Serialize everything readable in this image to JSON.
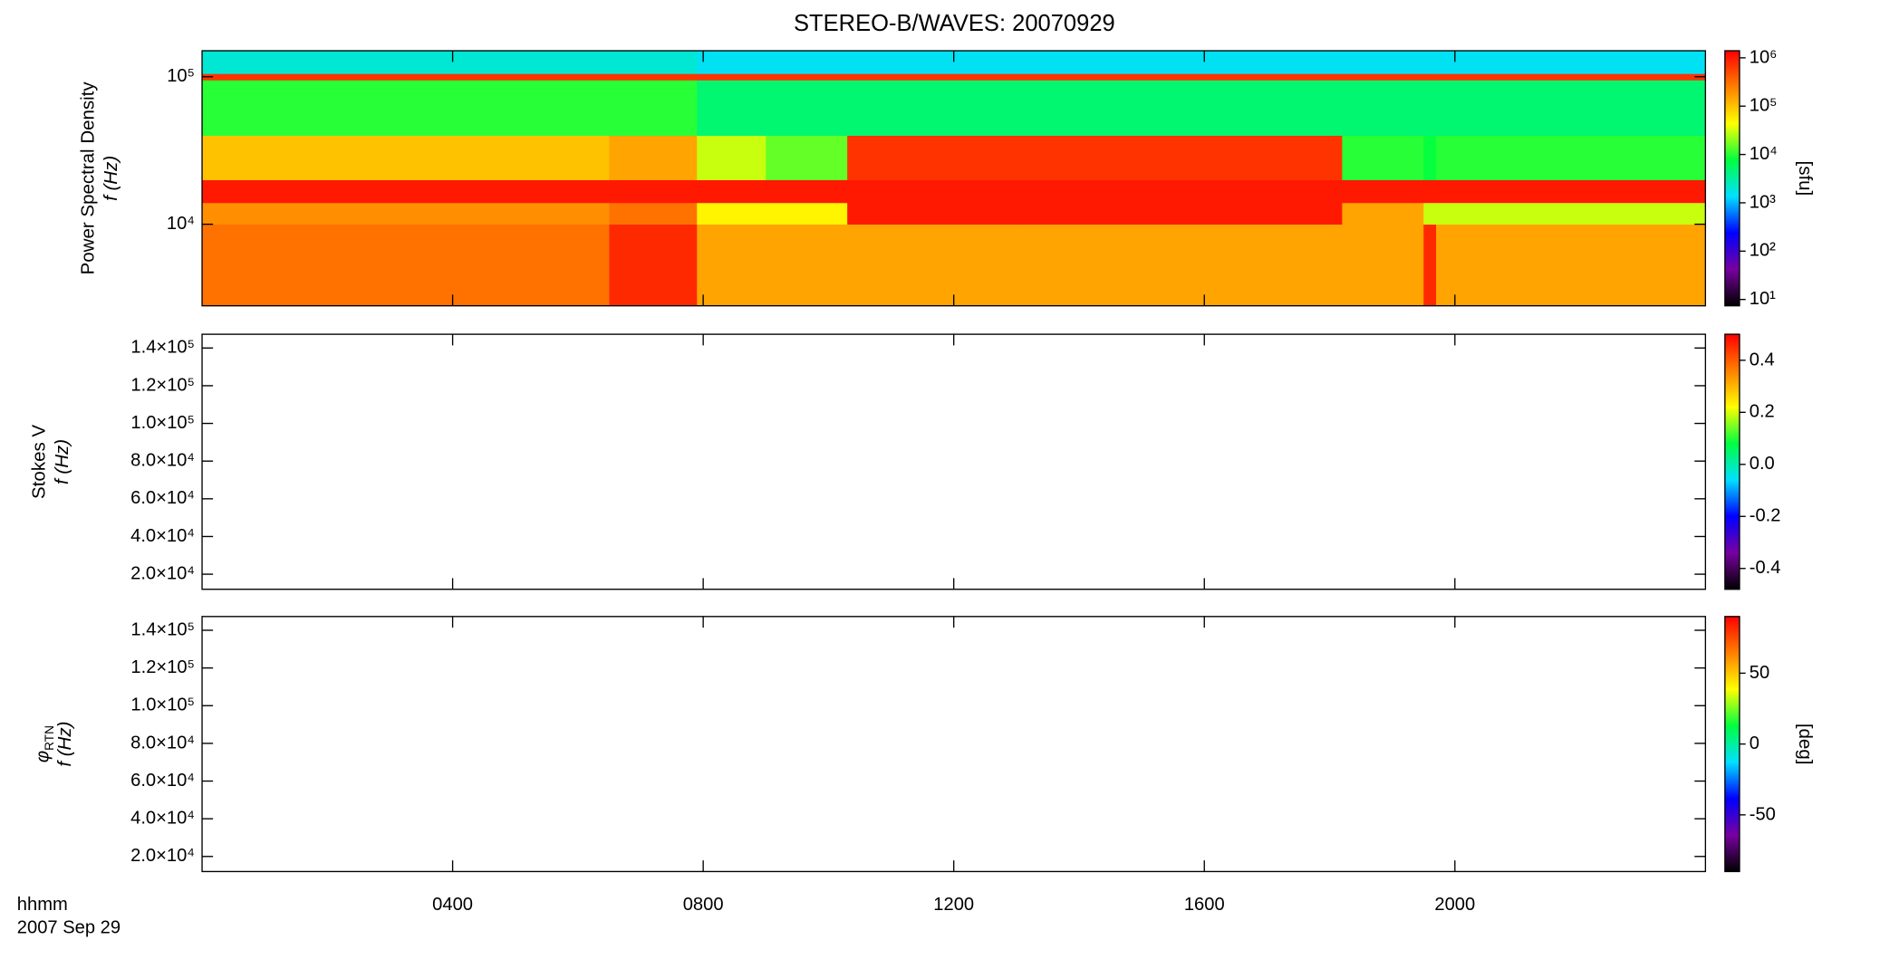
{
  "chart_data": [
    {
      "type": "heatmap",
      "title": "STEREO-B/WAVES: 20070929",
      "ylabel": "Power Spectral Density",
      "ylabel2": "f (Hz)",
      "x": [
        0,
        6.5,
        7.9,
        9,
        10.3,
        13.1,
        16.3,
        18.2,
        19.5,
        19.7,
        24
      ],
      "y": [
        2800,
        10000,
        14000,
        20000,
        40000,
        95000,
        105000,
        150000
      ],
      "z": [
        [
          300000,
          800000,
          150000,
          150000,
          150000,
          150000,
          150000,
          150000,
          800000,
          150000
        ],
        [
          200000,
          300000,
          50000,
          50000,
          1000000,
          1000000,
          1000000,
          150000,
          30000,
          30000
        ],
        [
          1000000,
          1000000,
          1000000,
          1000000,
          1000000,
          1000000,
          1000000,
          1000000,
          1000000,
          1000000
        ],
        [
          100000,
          150000,
          30000,
          15000,
          700000,
          700000,
          700000,
          10000,
          8000,
          10000
        ],
        [
          10000,
          10000,
          5000,
          5000,
          5000,
          5000,
          5000,
          5000,
          5000,
          5000
        ],
        [
          700000,
          700000,
          700000,
          700000,
          700000,
          700000,
          700000,
          700000,
          700000,
          700000
        ],
        [
          2000,
          2000,
          1500,
          1500,
          1500,
          1500,
          1500,
          1500,
          1500,
          1500
        ]
      ],
      "xlim": [
        0,
        24
      ],
      "xticks": [
        {
          "value": 4,
          "label": "0400"
        },
        {
          "value": 8,
          "label": "0800"
        },
        {
          "value": 12,
          "label": "1200"
        },
        {
          "value": 16,
          "label": "1600"
        },
        {
          "value": 20,
          "label": "2000"
        }
      ],
      "xtick_labels": false,
      "ylim": [
        2800,
        150000
      ],
      "yscale": "log",
      "yticks": [
        {
          "value": 10000,
          "label": "10⁴"
        },
        {
          "value": 100000,
          "label": "10⁵"
        }
      ],
      "zlim": [
        7.4,
        1400000
      ],
      "zscale": "log",
      "zticks": [
        {
          "value": 10,
          "label": "10¹"
        },
        {
          "value": 100,
          "label": "10²"
        },
        {
          "value": 1000,
          "label": "10³"
        },
        {
          "value": 10000,
          "label": "10⁴"
        },
        {
          "value": 100000,
          "label": "10⁵"
        },
        {
          "value": 1000000,
          "label": "10⁶"
        }
      ],
      "zlabel": "[sfu]",
      "colormap": [
        "#000000",
        "#7800a0",
        "#0000ff",
        "#00e0ff",
        "#00ff40",
        "#ffff00",
        "#ff8000",
        "#ff0000"
      ]
    },
    {
      "type": "heatmap",
      "ylabel": "Stokes V",
      "ylabel2": "f (Hz)",
      "xlim": [
        0,
        24
      ],
      "xticks": [
        {
          "value": 4,
          "label": "0400"
        },
        {
          "value": 8,
          "label": "0800"
        },
        {
          "value": 12,
          "label": "1200"
        },
        {
          "value": 16,
          "label": "1600"
        },
        {
          "value": 20,
          "label": "2000"
        }
      ],
      "xtick_labels": false,
      "ylim": [
        12000,
        147300
      ],
      "yscale": "linear",
      "yticks": [
        {
          "value": 20000,
          "label": "2.0×10⁴"
        },
        {
          "value": 40000,
          "label": "4.0×10⁴"
        },
        {
          "value": 60000,
          "label": "6.0×10⁴"
        },
        {
          "value": 80000,
          "label": "8.0×10⁴"
        },
        {
          "value": 100000,
          "label": "1.0×10⁵"
        },
        {
          "value": 120000,
          "label": "1.2×10⁵"
        },
        {
          "value": 140000,
          "label": "1.4×10⁵"
        }
      ],
      "zlim": [
        -0.48,
        0.5
      ],
      "zscale": "linear",
      "zticks": [
        -0.4,
        -0.2,
        {
          "value": 0,
          "label": "0.0"
        },
        0.2,
        0.4
      ],
      "colormap": [
        "#000000",
        "#7800a0",
        "#0000ff",
        "#00e0ff",
        "#00ff40",
        "#ffff00",
        "#ff8000",
        "#ff0000"
      ]
    },
    {
      "type": "heatmap",
      "ylabel": "φ",
      "ylabel_sub": "RTN",
      "ylabel2": "f (Hz)",
      "xlim": [
        0,
        24
      ],
      "xticks": [
        {
          "value": 4,
          "label": "0400"
        },
        {
          "value": 8,
          "label": "0800"
        },
        {
          "value": 12,
          "label": "1200"
        },
        {
          "value": 16,
          "label": "1600"
        },
        {
          "value": 20,
          "label": "2000"
        }
      ],
      "xtick_labels": true,
      "xlabel": "hhmm",
      "xlabel2": "2007 Sep 29",
      "ylim": [
        12000,
        147300
      ],
      "yscale": "linear",
      "yticks": [
        {
          "value": 20000,
          "label": "2.0×10⁴"
        },
        {
          "value": 40000,
          "label": "4.0×10⁴"
        },
        {
          "value": 60000,
          "label": "6.0×10⁴"
        },
        {
          "value": 80000,
          "label": "8.0×10⁴"
        },
        {
          "value": 100000,
          "label": "1.0×10⁵"
        },
        {
          "value": 120000,
          "label": "1.2×10⁵"
        },
        {
          "value": 140000,
          "label": "1.4×10⁵"
        }
      ],
      "zlim": [
        -90,
        90
      ],
      "zscale": "linear",
      "zticks": [
        -50,
        0,
        50
      ],
      "zlabel": "[deg]",
      "colormap": [
        "#000000",
        "#7800a0",
        "#0000ff",
        "#00e0ff",
        "#00ff40",
        "#ffff00",
        "#ff8000",
        "#ff0000"
      ]
    }
  ]
}
